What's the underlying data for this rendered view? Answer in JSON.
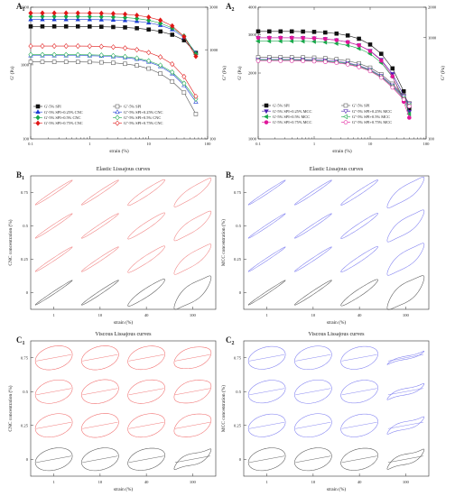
{
  "colors": {
    "black": "#111111",
    "blue": "#1f3fd6",
    "green": "#18a84a",
    "red": "#e01616",
    "elastic_red": "#f08080",
    "lissajous_blue": "#7b7bf0",
    "lissajous_black": "#555555",
    "viscous_red": "#f06a6a"
  },
  "chart_data": [
    {
      "panel": "A",
      "sub": "1",
      "type": "line",
      "x_scale": "log",
      "y_scale": "log",
      "xlabel": "strain (%)",
      "ylabel": "G' (Pa)",
      "y2label": "G'' (Pa)",
      "xlim": [
        0.1,
        100
      ],
      "ylim": [
        100,
        6000
      ],
      "y2lim": [
        100,
        3000
      ],
      "x_ticks": [
        "0.1",
        "1",
        "10",
        "100"
      ],
      "y_ticks": [
        {
          "v": 100,
          "t": "100"
        },
        {
          "v": 1000,
          "t": "1000"
        },
        {
          "v": 6000,
          "t": "6000"
        }
      ],
      "y2_ticks": [
        {
          "v": 100,
          "t": "100"
        },
        {
          "v": 1000,
          "t": "1000"
        },
        {
          "v": 3000,
          "t": "3000"
        }
      ],
      "x": [
        0.1,
        0.158,
        0.251,
        0.398,
        0.631,
        1.0,
        1.58,
        2.51,
        3.98,
        6.31,
        10.0,
        15.8,
        25.1,
        39.8,
        63.1
      ],
      "series": [
        {
          "name": "G'-5% SPI",
          "axis": "left",
          "color": "#111111",
          "marker": "square",
          "filled": true,
          "values": [
            3300,
            3300,
            3300,
            3300,
            3300,
            3290,
            3270,
            3240,
            3200,
            3120,
            3000,
            2820,
            2550,
            2150,
            1450
          ]
        },
        {
          "name": "G'-5% SPI+0.25% CNC",
          "axis": "left",
          "color": "#1f3fd6",
          "marker": "triangle",
          "filled": true,
          "values": [
            4100,
            4100,
            4100,
            4100,
            4100,
            4090,
            4070,
            4040,
            3980,
            3880,
            3700,
            3430,
            3000,
            2350,
            1450
          ]
        },
        {
          "name": "G'-5% SPI+0.5% CNC",
          "axis": "left",
          "color": "#18a84a",
          "marker": "diamond",
          "filled": true,
          "values": [
            4500,
            4500,
            4500,
            4500,
            4500,
            4490,
            4470,
            4430,
            4350,
            4220,
            4000,
            3650,
            3150,
            2450,
            1400
          ]
        },
        {
          "name": "G'-5% SPI+0.75% CNC",
          "axis": "left",
          "color": "#e01616",
          "marker": "diamond",
          "filled": true,
          "values": [
            5000,
            5000,
            5000,
            5000,
            5000,
            4990,
            4960,
            4910,
            4820,
            4660,
            4400,
            4000,
            3350,
            2400,
            1300
          ]
        },
        {
          "name": "G''-5% SPI",
          "axis": "right",
          "color": "#555555",
          "marker": "square",
          "filled": false,
          "values": [
            730,
            730,
            730,
            730,
            730,
            728,
            722,
            712,
            695,
            665,
            615,
            540,
            440,
            330,
            190
          ]
        },
        {
          "name": "G''-5% SPI+0.25% CNC",
          "axis": "right",
          "color": "#1f3fd6",
          "marker": "triangle",
          "filled": false,
          "values": [
            860,
            860,
            860,
            860,
            860,
            857,
            850,
            838,
            818,
            785,
            730,
            650,
            540,
            400,
            260
          ]
        },
        {
          "name": "G''-5% SPI+0.5% CNC",
          "axis": "right",
          "color": "#18a84a",
          "marker": "diamond",
          "filled": false,
          "values": [
            880,
            880,
            880,
            880,
            880,
            877,
            870,
            858,
            838,
            805,
            750,
            670,
            560,
            420,
            280
          ]
        },
        {
          "name": "G''-5% SPI+0.75% CNC",
          "axis": "right",
          "color": "#e01616",
          "marker": "diamond",
          "filled": false,
          "values": [
            1100,
            1100,
            1100,
            1100,
            1100,
            1096,
            1087,
            1071,
            1044,
            1000,
            930,
            830,
            690,
            500,
            300
          ]
        }
      ]
    },
    {
      "panel": "A",
      "sub": "2",
      "type": "line",
      "x_scale": "log",
      "y_scale": "log",
      "xlabel": "strain (%)",
      "ylabel": "G' (Pa)",
      "y2label": "G'' (Pa)",
      "xlim": [
        0.1,
        100
      ],
      "ylim": [
        1000,
        4000
      ],
      "y2lim": [
        100,
        2000
      ],
      "x_ticks": [
        "0.1",
        "1",
        "10",
        "100"
      ],
      "y_ticks": [
        {
          "v": 1000,
          "t": "1000"
        },
        {
          "v": 2000,
          "t": "2000"
        },
        {
          "v": 3000,
          "t": "3000"
        },
        {
          "v": 4000,
          "t": "4000"
        }
      ],
      "y2_ticks": [
        {
          "v": 100,
          "t": "100"
        },
        {
          "v": 1000,
          "t": "1000"
        },
        {
          "v": 2000,
          "t": "2000"
        }
      ],
      "x": [
        0.1,
        0.158,
        0.251,
        0.398,
        0.631,
        1.0,
        1.58,
        2.51,
        3.98,
        6.31,
        10.0,
        15.8,
        25.1,
        39.8,
        50.0
      ],
      "series": [
        {
          "name": "G'-5% SPI",
          "axis": "left",
          "color": "#111111",
          "marker": "square",
          "filled": true,
          "values": [
            3100,
            3100,
            3100,
            3100,
            3095,
            3085,
            3065,
            3030,
            2970,
            2870,
            2700,
            2450,
            2100,
            1650,
            1380
          ]
        },
        {
          "name": "G'-5% SPI+0.25% MCC",
          "axis": "left",
          "color": "#4a1fb0",
          "marker": "triangle-down",
          "filled": true,
          "values": [
            2900,
            2900,
            2900,
            2900,
            2895,
            2885,
            2865,
            2830,
            2770,
            2680,
            2530,
            2300,
            1980,
            1580,
            1330
          ]
        },
        {
          "name": "G'-5% SPI+0.5% MCC",
          "axis": "left",
          "color": "#18a84a",
          "marker": "triangle-left",
          "filled": true,
          "values": [
            2800,
            2800,
            2800,
            2800,
            2795,
            2785,
            2765,
            2730,
            2680,
            2590,
            2450,
            2230,
            1920,
            1530,
            1300
          ]
        },
        {
          "name": "G'-5% SPI+0.75% MCC",
          "axis": "left",
          "color": "#e0179a",
          "marker": "circle",
          "filled": true,
          "values": [
            2900,
            2900,
            2900,
            2900,
            2895,
            2885,
            2865,
            2830,
            2770,
            2680,
            2520,
            2280,
            1930,
            1480,
            1250
          ]
        },
        {
          "name": "G''-5% SPI",
          "axis": "right",
          "color": "#555555",
          "marker": "square",
          "filled": false,
          "values": [
            640,
            640,
            640,
            640,
            638,
            634,
            626,
            612,
            590,
            556,
            505,
            435,
            350,
            265,
            225
          ]
        },
        {
          "name": "G''-5% SPI+0.25% MCC",
          "axis": "right",
          "color": "#4a1fb0",
          "marker": "triangle-down",
          "filled": false,
          "values": [
            610,
            610,
            610,
            610,
            608,
            604,
            597,
            584,
            563,
            531,
            483,
            418,
            338,
            260,
            222
          ]
        },
        {
          "name": "G''-5% SPI+0.5% MCC",
          "axis": "right",
          "color": "#18a84a",
          "marker": "triangle-left",
          "filled": false,
          "values": [
            600,
            600,
            600,
            600,
            598,
            594,
            587,
            574,
            553,
            522,
            475,
            410,
            330,
            252,
            215
          ]
        },
        {
          "name": "G''-5% SPI+0.75% MCC",
          "axis": "right",
          "color": "#e0179a",
          "marker": "circle",
          "filled": false,
          "values": [
            590,
            590,
            590,
            590,
            588,
            584,
            577,
            564,
            544,
            513,
            467,
            403,
            322,
            245,
            210
          ]
        }
      ]
    },
    {
      "panel": "B",
      "sub": "1",
      "type": "lissajous-grid",
      "title": "Elastic Lissajous curves",
      "xlabel": "strain (%)",
      "ylabel": "CNC concentration (%)",
      "columns": [
        "1",
        "10",
        "40",
        "100"
      ],
      "rows": [
        "0.75",
        "0.5",
        "0.25",
        "0"
      ],
      "row_colors": [
        "#f08080",
        "#f08080",
        "#f08080",
        "#555555"
      ],
      "curves": [
        [
          {
            "w": 0.12,
            "d": 0.0
          },
          {
            "w": 0.14,
            "d": 0.0
          },
          {
            "w": 0.26,
            "d": 0.05
          },
          {
            "w": 0.42,
            "d": 0.25
          }
        ],
        [
          {
            "w": 0.12,
            "d": 0.0
          },
          {
            "w": 0.14,
            "d": 0.0
          },
          {
            "w": 0.28,
            "d": 0.08
          },
          {
            "w": 0.48,
            "d": 0.3
          }
        ],
        [
          {
            "w": 0.12,
            "d": 0.0
          },
          {
            "w": 0.14,
            "d": 0.0
          },
          {
            "w": 0.3,
            "d": 0.1
          },
          {
            "w": 0.52,
            "d": 0.35
          }
        ],
        [
          {
            "w": 0.1,
            "d": 0.0
          },
          {
            "w": 0.14,
            "d": 0.0
          },
          {
            "w": 0.35,
            "d": 0.12
          },
          {
            "w": 0.7,
            "d": 0.55
          }
        ]
      ]
    },
    {
      "panel": "B",
      "sub": "2",
      "type": "lissajous-grid",
      "title": "Elastic Lissajous curves",
      "xlabel": "strain (%)",
      "ylabel": "MCC concentration (%)",
      "columns": [
        "1",
        "10",
        "40",
        "100"
      ],
      "rows": [
        "0.75",
        "0.5",
        "0.25",
        "0"
      ],
      "row_colors": [
        "#7b7bf0",
        "#7b7bf0",
        "#7b7bf0",
        "#555555"
      ],
      "curves": [
        [
          {
            "w": 0.1,
            "d": 0.0
          },
          {
            "w": 0.12,
            "d": 0.0
          },
          {
            "w": 0.18,
            "d": 0.02
          },
          {
            "w": 0.55,
            "d": 0.4
          }
        ],
        [
          {
            "w": 0.1,
            "d": 0.0
          },
          {
            "w": 0.12,
            "d": 0.0
          },
          {
            "w": 0.2,
            "d": 0.03
          },
          {
            "w": 0.6,
            "d": 0.45
          }
        ],
        [
          {
            "w": 0.1,
            "d": 0.0
          },
          {
            "w": 0.12,
            "d": 0.0
          },
          {
            "w": 0.22,
            "d": 0.04
          },
          {
            "w": 0.62,
            "d": 0.45
          }
        ],
        [
          {
            "w": 0.1,
            "d": 0.0
          },
          {
            "w": 0.14,
            "d": 0.0
          },
          {
            "w": 0.3,
            "d": 0.08
          },
          {
            "w": 0.75,
            "d": 0.55
          }
        ]
      ]
    },
    {
      "panel": "C",
      "sub": "1",
      "type": "lissajous-grid",
      "title": "Viscous Lissajous curves",
      "xlabel": "strain (%)",
      "ylabel": "CNC concentration (%)",
      "columns": [
        "1",
        "10",
        "40",
        "100"
      ],
      "rows": [
        "0.75",
        "0.5",
        "0.25",
        "0"
      ],
      "row_colors": [
        "#f06a6a",
        "#f06a6a",
        "#f06a6a",
        "#555555"
      ],
      "curves": [
        [
          {
            "w": 0.9,
            "d": 0.0
          },
          {
            "w": 0.9,
            "d": 0.0
          },
          {
            "w": 0.88,
            "d": 0.05
          },
          {
            "w": 0.8,
            "d": 0.15
          }
        ],
        [
          {
            "w": 0.88,
            "d": 0.0
          },
          {
            "w": 0.9,
            "d": 0.0
          },
          {
            "w": 0.88,
            "d": 0.05
          },
          {
            "w": 0.85,
            "d": 0.2
          }
        ],
        [
          {
            "w": 0.88,
            "d": 0.0
          },
          {
            "w": 0.9,
            "d": 0.0
          },
          {
            "w": 0.88,
            "d": 0.05
          },
          {
            "w": 0.85,
            "d": 0.2
          }
        ],
        [
          {
            "w": 0.85,
            "d": 0.0
          },
          {
            "w": 0.85,
            "d": 0.0
          },
          {
            "w": 0.82,
            "d": 0.08
          },
          {
            "w": 0.45,
            "d": 0.55
          }
        ]
      ]
    },
    {
      "panel": "C",
      "sub": "2",
      "type": "lissajous-grid",
      "title": "Viscous Lissajous curves",
      "xlabel": "strain (%)",
      "ylabel": "MCC concentration (%)",
      "columns": [
        "1",
        "10",
        "40",
        "100"
      ],
      "rows": [
        "0.75",
        "0.5",
        "0.25",
        "0"
      ],
      "row_colors": [
        "#7b7bf0",
        "#7b7bf0",
        "#7b7bf0",
        "#555555"
      ],
      "curves": [
        [
          {
            "w": 0.85,
            "d": 0.0
          },
          {
            "w": 0.88,
            "d": 0.0
          },
          {
            "w": 0.85,
            "d": 0.05
          },
          {
            "w": 0.12,
            "d": 0.3
          }
        ],
        [
          {
            "w": 0.85,
            "d": 0.0
          },
          {
            "w": 0.88,
            "d": 0.0
          },
          {
            "w": 0.85,
            "d": 0.05
          },
          {
            "w": 0.25,
            "d": 0.4
          }
        ],
        [
          {
            "w": 0.85,
            "d": 0.0
          },
          {
            "w": 0.88,
            "d": 0.0
          },
          {
            "w": 0.85,
            "d": 0.05
          },
          {
            "w": 0.3,
            "d": 0.45
          }
        ],
        [
          {
            "w": 0.85,
            "d": 0.0
          },
          {
            "w": 0.85,
            "d": 0.0
          },
          {
            "w": 0.82,
            "d": 0.06
          },
          {
            "w": 0.4,
            "d": 0.55
          }
        ]
      ]
    }
  ]
}
